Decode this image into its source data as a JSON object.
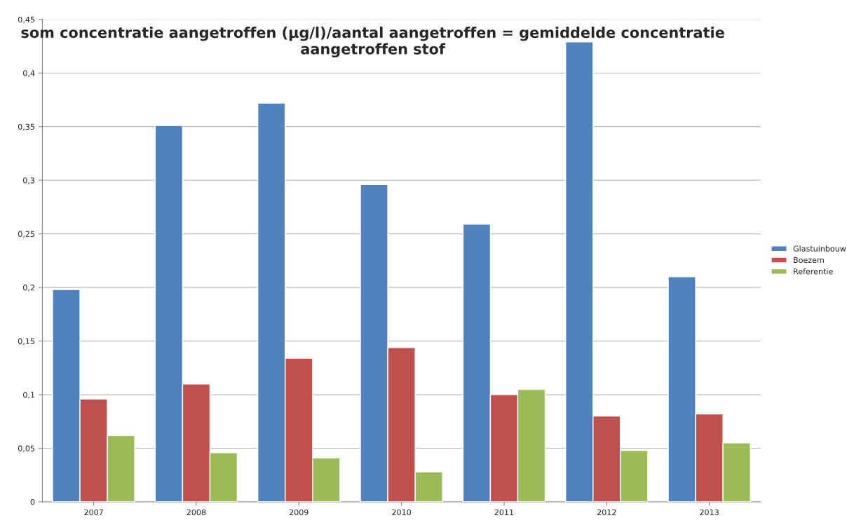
{
  "chart_data": {
    "type": "bar",
    "title": "som concentratie aangetroffen (µg/l)/aantal aangetroffen = gemiddelde concentratie\naangetroffen stof",
    "categories": [
      "2007",
      "2008",
      "2009",
      "2010",
      "2011",
      "2012",
      "2013"
    ],
    "series": [
      {
        "name": "Glastuinbouw",
        "color": "#4f81bd",
        "values": [
          0.198,
          0.351,
          0.372,
          0.296,
          0.259,
          0.429,
          0.21
        ]
      },
      {
        "name": "Boezem",
        "color": "#c0504d",
        "values": [
          0.096,
          0.11,
          0.134,
          0.144,
          0.1,
          0.08,
          0.082
        ]
      },
      {
        "name": "Referentie",
        "color": "#9bbb59",
        "values": [
          0.062,
          0.046,
          0.041,
          0.028,
          0.105,
          0.048,
          0.055
        ]
      }
    ],
    "ylim": [
      0,
      0.45
    ],
    "yticks": [
      0,
      {
        "value": 0.05,
        "label": "0,05"
      },
      {
        "value": 0.1,
        "label": "0,1"
      },
      {
        "value": 0.15,
        "label": "0,15"
      },
      {
        "value": 0.2,
        "label": "0,2"
      },
      {
        "value": 0.25,
        "label": "0,25"
      },
      {
        "value": 0.3,
        "label": "0,3"
      },
      {
        "value": 0.35,
        "label": "0,35"
      },
      {
        "value": 0.4,
        "label": "0,4"
      },
      {
        "value": 0.45,
        "label": "0,45"
      }
    ],
    "grid": "y",
    "legend": "right"
  }
}
